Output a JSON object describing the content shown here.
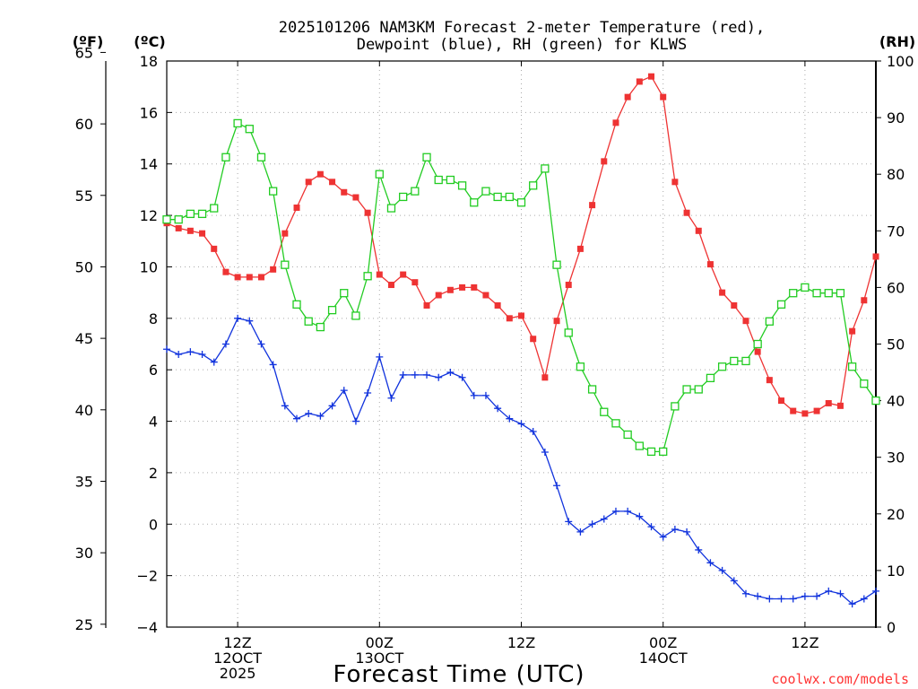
{
  "title_line1": "2025101206 NAM3KM Forecast 2-meter Temperature (red),",
  "title_line2": "Dewpoint (blue), RH (green) for KLWS",
  "credit": "coolwx.com/models",
  "credit_color": "#ff3333",
  "chart_data": {
    "type": "line",
    "xlabel": "Forecast Time (UTC)",
    "x_unit": "hours from 2025101206",
    "xlim": [
      0,
      60
    ],
    "x_ticks": [
      {
        "x": 6,
        "line1": "12Z",
        "line2": "12OCT",
        "line3": "2025"
      },
      {
        "x": 18,
        "line1": "00Z",
        "line2": "13OCT",
        "line3": ""
      },
      {
        "x": 30,
        "line1": "12Z",
        "line2": "",
        "line3": ""
      },
      {
        "x": 42,
        "line1": "00Z",
        "line2": "14OCT",
        "line3": ""
      },
      {
        "x": 54,
        "line1": "12Z",
        "line2": "",
        "line3": ""
      }
    ],
    "axes": {
      "left_outer": {
        "label": "(ºF)",
        "lim": [
          24.8,
          64.4
        ],
        "ticks": [
          25,
          30,
          35,
          40,
          45,
          50,
          55,
          60,
          65
        ]
      },
      "left_inner": {
        "label": "(ºC)",
        "lim": [
          -4,
          18
        ],
        "ticks": [
          "-4",
          "-2",
          "0",
          "2",
          "4",
          "6",
          "8",
          "10",
          "12",
          "14",
          "16",
          "18"
        ]
      },
      "right": {
        "label": "(RH)",
        "lim": [
          0,
          100
        ],
        "ticks": [
          0,
          10,
          20,
          30,
          40,
          50,
          60,
          70,
          80,
          90,
          100
        ]
      }
    },
    "grid": true,
    "series": [
      {
        "name": "Temperature",
        "unit": "C",
        "axis": "left_inner",
        "color": "#ee3333",
        "marker": "filled-square",
        "x": [
          0,
          1,
          2,
          3,
          4,
          5,
          6,
          7,
          8,
          9,
          10,
          11,
          12,
          13,
          14,
          15,
          16,
          17,
          18,
          19,
          20,
          21,
          22,
          23,
          24,
          25,
          26,
          27,
          28,
          29,
          30,
          31,
          32,
          33,
          34,
          35,
          36,
          37,
          38,
          39,
          40,
          41,
          42,
          43,
          44,
          45,
          46,
          47,
          48,
          49,
          50,
          51,
          52,
          53,
          54,
          55,
          56,
          57,
          58,
          59,
          60
        ],
        "values": [
          11.7,
          11.5,
          11.4,
          11.3,
          10.7,
          9.8,
          9.6,
          9.6,
          9.6,
          9.9,
          11.3,
          12.3,
          13.3,
          13.6,
          13.3,
          12.9,
          12.7,
          12.1,
          9.7,
          9.3,
          9.7,
          9.4,
          8.5,
          8.9,
          9.1,
          9.2,
          9.2,
          8.9,
          8.5,
          8.0,
          8.1,
          7.2,
          5.7,
          7.9,
          9.3,
          10.7,
          12.4,
          14.1,
          15.6,
          16.6,
          17.2,
          17.4,
          16.6,
          13.3,
          12.1,
          11.4,
          10.1,
          9.0,
          8.5,
          7.9,
          6.7,
          5.6,
          4.8,
          4.4,
          4.3,
          4.4,
          4.7,
          4.6,
          7.5,
          8.7,
          10.4
        ]
      },
      {
        "name": "Dewpoint",
        "unit": "C",
        "axis": "left_inner",
        "color": "#1133dd",
        "marker": "plus",
        "x": [
          0,
          1,
          2,
          3,
          4,
          5,
          6,
          7,
          8,
          9,
          10,
          11,
          12,
          13,
          14,
          15,
          16,
          17,
          18,
          19,
          20,
          21,
          22,
          23,
          24,
          25,
          26,
          27,
          28,
          29,
          30,
          31,
          32,
          33,
          34,
          35,
          36,
          37,
          38,
          39,
          40,
          41,
          42,
          43,
          44,
          45,
          46,
          47,
          48,
          49,
          50,
          51,
          52,
          53,
          54,
          55,
          56,
          57,
          58,
          59,
          60
        ],
        "values": [
          6.8,
          6.6,
          6.7,
          6.6,
          6.3,
          7.0,
          8.0,
          7.9,
          7.0,
          6.2,
          4.6,
          4.1,
          4.3,
          4.2,
          4.6,
          5.2,
          4.0,
          5.1,
          6.5,
          4.9,
          5.8,
          5.8,
          5.8,
          5.7,
          5.9,
          5.7,
          5.0,
          5.0,
          4.5,
          4.1,
          3.9,
          3.6,
          2.8,
          1.5,
          0.1,
          -0.3,
          0.0,
          0.2,
          0.5,
          0.5,
          0.3,
          -0.1,
          -0.5,
          -0.2,
          -0.3,
          -1.0,
          -1.5,
          -1.8,
          -2.2,
          -2.7,
          -2.8,
          -2.9,
          -2.9,
          -2.9,
          -2.8,
          -2.8,
          -2.6,
          -2.7,
          -3.1,
          -2.9,
          -2.6
        ]
      },
      {
        "name": "RH",
        "unit": "%",
        "axis": "right",
        "color": "#22cc22",
        "marker": "open-square",
        "x": [
          0,
          1,
          2,
          3,
          4,
          5,
          6,
          7,
          8,
          9,
          10,
          11,
          12,
          13,
          14,
          15,
          16,
          17,
          18,
          19,
          20,
          21,
          22,
          23,
          24,
          25,
          26,
          27,
          28,
          29,
          30,
          31,
          32,
          33,
          34,
          35,
          36,
          37,
          38,
          39,
          40,
          41,
          42,
          43,
          44,
          45,
          46,
          47,
          48,
          49,
          50,
          51,
          52,
          53,
          54,
          55,
          56,
          57,
          58,
          59,
          60
        ],
        "values": [
          72,
          72,
          73,
          73,
          74,
          83,
          89,
          88,
          83,
          77,
          64,
          57,
          54,
          53,
          56,
          59,
          55,
          62,
          80,
          74,
          76,
          77,
          83,
          79,
          79,
          78,
          75,
          77,
          76,
          76,
          75,
          78,
          81,
          64,
          52,
          46,
          42,
          38,
          36,
          34,
          32,
          31,
          31,
          39,
          42,
          42,
          44,
          46,
          47,
          47,
          50,
          54,
          57,
          59,
          60,
          59,
          59,
          59,
          46,
          43,
          40
        ]
      }
    ]
  }
}
